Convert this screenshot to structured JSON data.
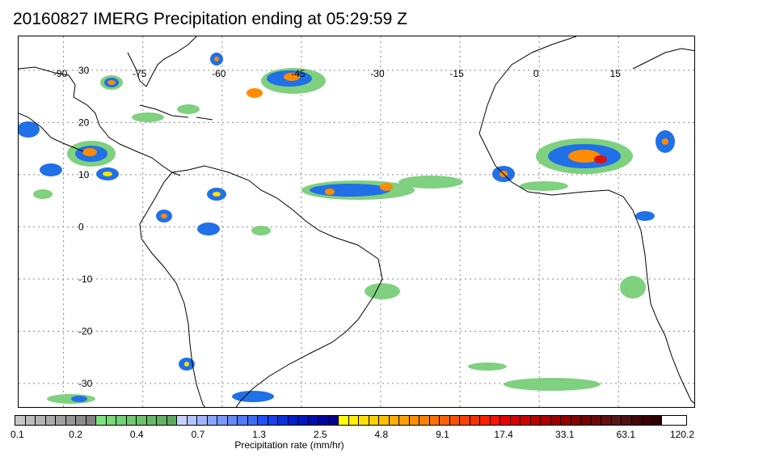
{
  "title": "20160827 IMERG Precipitation ending at 05:29:59 Z",
  "map": {
    "lon_labels": [
      "-90",
      "-75",
      "-60",
      "-45",
      "-30",
      "-15",
      "0",
      "15"
    ],
    "lat_labels": [
      "30",
      "20",
      "10",
      "0",
      "-10",
      "-20",
      "-30"
    ],
    "colors": {
      "land_line": "#000000",
      "grid": "#888888",
      "precip_light": "#7fd07f",
      "precip_mid": "#2070e8",
      "precip_heavy": "#1010c8",
      "precip_yellow": "#ffe000",
      "precip_orange": "#ff8c00",
      "precip_red": "#e01010"
    }
  },
  "colorbar": {
    "tick_labels": [
      "0.1",
      "0.2",
      "0.4",
      "0.7",
      "1.3",
      "2.5",
      "4.8",
      "9.1",
      "17.4",
      "33.1",
      "63.1",
      "120.2"
    ],
    "label": "Precipitation rate (mm/hr)",
    "colors": [
      "#c8c8c8",
      "#bebebe",
      "#b4b4b4",
      "#aaaaaa",
      "#a0a0a0",
      "#969696",
      "#8c8c8c",
      "#828282",
      "#7ce07c",
      "#78d878",
      "#74d074",
      "#70c870",
      "#6cc06c",
      "#68b868",
      "#64b064",
      "#60a860",
      "#c8d2ff",
      "#b4c4ff",
      "#a0b4ff",
      "#8ca6ff",
      "#7898ff",
      "#6488ff",
      "#507aff",
      "#3c6cff",
      "#1e50ff",
      "#1440f0",
      "#0a30e0",
      "#0020d0",
      "#0016c0",
      "#000cb0",
      "#0004a0",
      "#000090",
      "#ffff00",
      "#fff000",
      "#ffe000",
      "#ffd000",
      "#ffc000",
      "#ffb000",
      "#ffa000",
      "#ff9000",
      "#ff8000",
      "#ff7000",
      "#ff6000",
      "#ff5000",
      "#ff4000",
      "#ff3000",
      "#ff2000",
      "#ff1000",
      "#e60000",
      "#d80000",
      "#ca0000",
      "#bc0000",
      "#ae0000",
      "#a00000",
      "#920000",
      "#840000",
      "#760000",
      "#6c0808",
      "#621010",
      "#581818",
      "#4e1010",
      "#440808",
      "#3a0000",
      "#300000"
    ]
  }
}
